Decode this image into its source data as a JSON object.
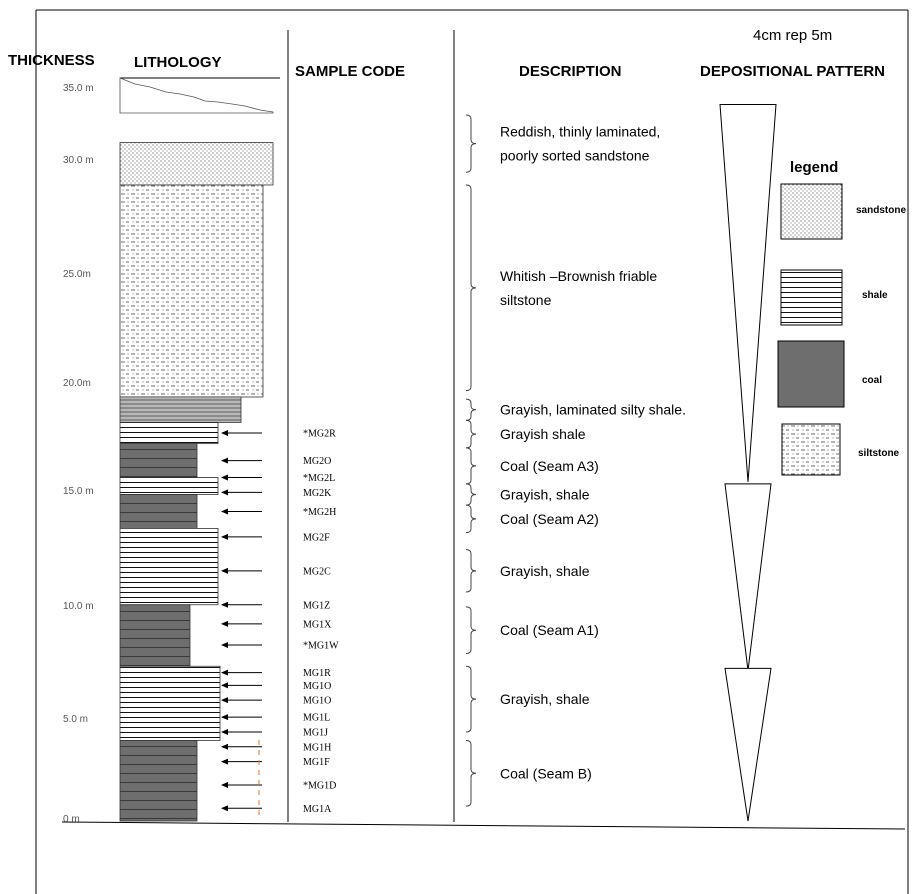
{
  "header": {
    "scale_note": "4cm rep 5m",
    "thickness": "THICKNESS",
    "lithology": "LITHOLOGY",
    "sample_code": "SAMPLE CODE",
    "description": "DESCRIPTION",
    "depositional_pattern": "DEPOSITIONAL PATTERN"
  },
  "thickness_ticks": [
    "35.0 m",
    "30.0 m",
    "25.0m",
    "20.0m",
    "15.0 m",
    "10.0 m",
    "5.0 m",
    "0 m"
  ],
  "lithology_column": {
    "layers": [
      {
        "type": "sandstone",
        "bottom_m": 30.0,
        "top_m": 32.0
      },
      {
        "type": "siltstone",
        "bottom_m": 20.0,
        "top_m": 30.0
      },
      {
        "type": "shale_dark",
        "bottom_m": 18.8,
        "top_m": 20.0
      },
      {
        "type": "shale",
        "bottom_m": 17.8,
        "top_m": 18.8
      },
      {
        "type": "coal",
        "bottom_m": 16.2,
        "top_m": 17.8
      },
      {
        "type": "shale",
        "bottom_m": 15.4,
        "top_m": 16.2
      },
      {
        "type": "coal",
        "bottom_m": 13.8,
        "top_m": 15.4
      },
      {
        "type": "shale",
        "bottom_m": 10.2,
        "top_m": 13.8
      },
      {
        "type": "coal",
        "bottom_m": 7.3,
        "top_m": 10.2
      },
      {
        "type": "shale",
        "bottom_m": 3.8,
        "top_m": 7.3
      },
      {
        "type": "coal",
        "bottom_m": 0.0,
        "top_m": 3.8
      }
    ]
  },
  "sample_codes": [
    {
      "code": "*MG2R",
      "m": 18.3
    },
    {
      "code": "MG2O",
      "m": 17.0
    },
    {
      "code": "*MG2L",
      "m": 16.2
    },
    {
      "code": "MG2K",
      "m": 15.5
    },
    {
      "code": "*MG2H",
      "m": 14.6
    },
    {
      "code": "MG2F",
      "m": 13.4
    },
    {
      "code": "MG2C",
      "m": 11.8
    },
    {
      "code": "MG1Z",
      "m": 10.2
    },
    {
      "code": "MG1X",
      "m": 9.3
    },
    {
      "code": "*MG1W",
      "m": 8.3
    },
    {
      "code": "MG1R",
      "m": 7.0
    },
    {
      "code": "MG1O",
      "m": 6.4
    },
    {
      "code": "MG1O",
      "m": 5.7
    },
    {
      "code": "MG1L",
      "m": 4.9
    },
    {
      "code": "MG1J",
      "m": 4.2
    },
    {
      "code": "MG1H",
      "m": 3.5
    },
    {
      "code": "MG1F",
      "m": 2.8
    },
    {
      "code": "*MG1D",
      "m": 1.7
    },
    {
      "code": "MG1A",
      "m": 0.6
    }
  ],
  "descriptions": [
    {
      "lines": [
        "Reddish, thinly laminated,",
        "poorly sorted sandstone"
      ],
      "top_m": 33.3,
      "bottom_m": 30.6
    },
    {
      "lines": [
        "Whitish –Brownish friable",
        "siltstone"
      ],
      "top_m": 30.0,
      "bottom_m": 20.3
    },
    {
      "lines": [
        "Grayish, laminated silty shale."
      ],
      "top_m": 19.9,
      "bottom_m": 18.9
    },
    {
      "lines": [
        "Grayish shale"
      ],
      "top_m": 18.9,
      "bottom_m": 17.6
    },
    {
      "lines": [
        "Coal (Seam A3)"
      ],
      "top_m": 17.6,
      "bottom_m": 15.9
    },
    {
      "lines": [
        "Grayish, shale"
      ],
      "top_m": 15.9,
      "bottom_m": 14.9
    },
    {
      "lines": [
        "Coal (Seam A2)"
      ],
      "top_m": 14.9,
      "bottom_m": 13.6
    },
    {
      "lines": [
        "Grayish, shale"
      ],
      "top_m": 12.8,
      "bottom_m": 10.8
    },
    {
      "lines": [
        "Coal (Seam A1)"
      ],
      "top_m": 10.1,
      "bottom_m": 7.9
    },
    {
      "lines": [
        "Grayish, shale"
      ],
      "top_m": 7.3,
      "bottom_m": 4.2
    },
    {
      "lines": [
        "Coal (Seam B)"
      ],
      "top_m": 3.8,
      "bottom_m": 0.7
    }
  ],
  "depositional_cycles": [
    {
      "top_m": 33.8,
      "bottom_m": 16.0
    },
    {
      "top_m": 15.9,
      "bottom_m": 7.1
    },
    {
      "top_m": 7.2,
      "bottom_m": 0.0
    }
  ],
  "legend": {
    "title": "legend",
    "items": [
      {
        "label": "sandstone",
        "pattern": "sandstone"
      },
      {
        "label": "shale",
        "pattern": "shale"
      },
      {
        "label": "coal",
        "pattern": "coal"
      },
      {
        "label": "siltstone",
        "pattern": "siltstone"
      }
    ]
  },
  "colors": {
    "coal": "#6e6e6e",
    "line": "#000000",
    "tick": "#555555",
    "marker": "#e07b39"
  }
}
